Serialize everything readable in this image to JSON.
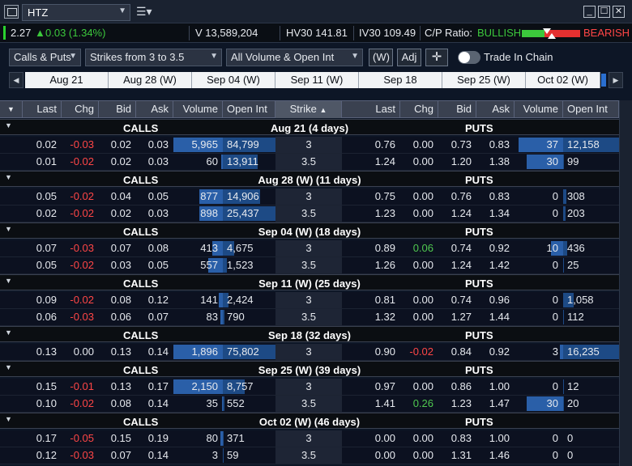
{
  "title_bar": {
    "symbol": "HTZ",
    "minimize": "_",
    "maximize": "☐",
    "close": "✕"
  },
  "quote": {
    "last": "2.27",
    "change": "0.03 (1.34%)",
    "volume": "V 13,589,204",
    "hv30": "HV30 141.81",
    "iv30": "IV30 109.49",
    "cp_ratio_label": "C/P Ratio:",
    "bullish": "BULLISH",
    "bearish": "BEARISH"
  },
  "controls": {
    "type_filter": "Calls & Puts",
    "strike_filter": "Strikes from 3 to 3.5",
    "volume_filter": "All Volume & Open Int",
    "w_button": "(W)",
    "adj_button": "Adj",
    "toggle_label": "Trade In Chain"
  },
  "expirations": [
    "Aug 21",
    "Aug 28 (W)",
    "Sep 04 (W)",
    "Sep 11 (W)",
    "Sep 18",
    "Sep 25 (W)",
    "Oct 02 (W)"
  ],
  "columns": {
    "last": "Last",
    "chg": "Chg",
    "bid": "Bid",
    "ask": "Ask",
    "volume": "Volume",
    "open_int": "Open Int",
    "strike": "Strike"
  },
  "sections": [
    {
      "calls": "CALLS",
      "expiry": "Aug 21 (4 days)",
      "puts": "PUTS",
      "rows": [
        {
          "c": [
            "0.02",
            "-0.03",
            "0.02",
            "0.03",
            "5,965",
            "84,799"
          ],
          "strike": "3",
          "p": [
            "0.76",
            "0.00",
            "0.73",
            "0.83",
            "37",
            "12,158"
          ]
        },
        {
          "c": [
            "0.01",
            "-0.02",
            "0.02",
            "0.03",
            "60",
            "13,911"
          ],
          "strike": "3.5",
          "p": [
            "1.24",
            "0.00",
            "1.20",
            "1.38",
            "30",
            "99"
          ]
        }
      ]
    },
    {
      "calls": "CALLS",
      "expiry": "Aug 28 (W) (11 days)",
      "puts": "PUTS",
      "rows": [
        {
          "c": [
            "0.05",
            "-0.02",
            "0.04",
            "0.05",
            "877",
            "14,906"
          ],
          "strike": "3",
          "p": [
            "0.75",
            "0.00",
            "0.76",
            "0.83",
            "0",
            "308"
          ]
        },
        {
          "c": [
            "0.02",
            "-0.02",
            "0.02",
            "0.03",
            "898",
            "25,437"
          ],
          "strike": "3.5",
          "p": [
            "1.23",
            "0.00",
            "1.24",
            "1.34",
            "0",
            "203"
          ]
        }
      ]
    },
    {
      "calls": "CALLS",
      "expiry": "Sep 04 (W) (18 days)",
      "puts": "PUTS",
      "rows": [
        {
          "c": [
            "0.07",
            "-0.03",
            "0.07",
            "0.08",
            "413",
            "4,675"
          ],
          "strike": "3",
          "p": [
            "0.89",
            "0.06",
            "0.74",
            "0.92",
            "10",
            "436"
          ]
        },
        {
          "c": [
            "0.05",
            "-0.02",
            "0.03",
            "0.05",
            "557",
            "1,523"
          ],
          "strike": "3.5",
          "p": [
            "1.26",
            "0.00",
            "1.24",
            "1.42",
            "0",
            "25"
          ]
        }
      ]
    },
    {
      "calls": "CALLS",
      "expiry": "Sep 11 (W) (25 days)",
      "puts": "PUTS",
      "rows": [
        {
          "c": [
            "0.09",
            "-0.02",
            "0.08",
            "0.12",
            "141",
            "2,424"
          ],
          "strike": "3",
          "p": [
            "0.81",
            "0.00",
            "0.74",
            "0.96",
            "0",
            "1,058"
          ]
        },
        {
          "c": [
            "0.06",
            "-0.03",
            "0.06",
            "0.07",
            "83",
            "790"
          ],
          "strike": "3.5",
          "p": [
            "1.32",
            "0.00",
            "1.27",
            "1.44",
            "0",
            "112"
          ]
        }
      ]
    },
    {
      "calls": "CALLS",
      "expiry": "Sep 18 (32 days)",
      "puts": "PUTS",
      "rows": [
        {
          "c": [
            "0.13",
            "0.00",
            "0.13",
            "0.14",
            "1,896",
            "75,802"
          ],
          "strike": "3",
          "p": [
            "0.90",
            "-0.02",
            "0.84",
            "0.92",
            "3",
            "16,235"
          ]
        }
      ]
    },
    {
      "calls": "CALLS",
      "expiry": "Sep 25 (W) (39 days)",
      "puts": "PUTS",
      "rows": [
        {
          "c": [
            "0.15",
            "-0.01",
            "0.13",
            "0.17",
            "2,150",
            "8,757"
          ],
          "strike": "3",
          "p": [
            "0.97",
            "0.00",
            "0.86",
            "1.00",
            "0",
            "12"
          ]
        },
        {
          "c": [
            "0.10",
            "-0.02",
            "0.08",
            "0.14",
            "35",
            "552"
          ],
          "strike": "3.5",
          "p": [
            "1.41",
            "0.26",
            "1.23",
            "1.47",
            "30",
            "20"
          ]
        }
      ]
    },
    {
      "calls": "CALLS",
      "expiry": "Oct 02 (W) (46 days)",
      "puts": "PUTS",
      "rows": [
        {
          "c": [
            "0.17",
            "-0.05",
            "0.15",
            "0.19",
            "80",
            "371"
          ],
          "strike": "3",
          "p": [
            "0.00",
            "0.00",
            "0.83",
            "1.00",
            "0",
            "0"
          ]
        },
        {
          "c": [
            "0.12",
            "-0.03",
            "0.07",
            "0.14",
            "3",
            "59"
          ],
          "strike": "3.5",
          "p": [
            "0.00",
            "0.00",
            "1.31",
            "1.46",
            "0",
            "0"
          ]
        }
      ]
    }
  ]
}
